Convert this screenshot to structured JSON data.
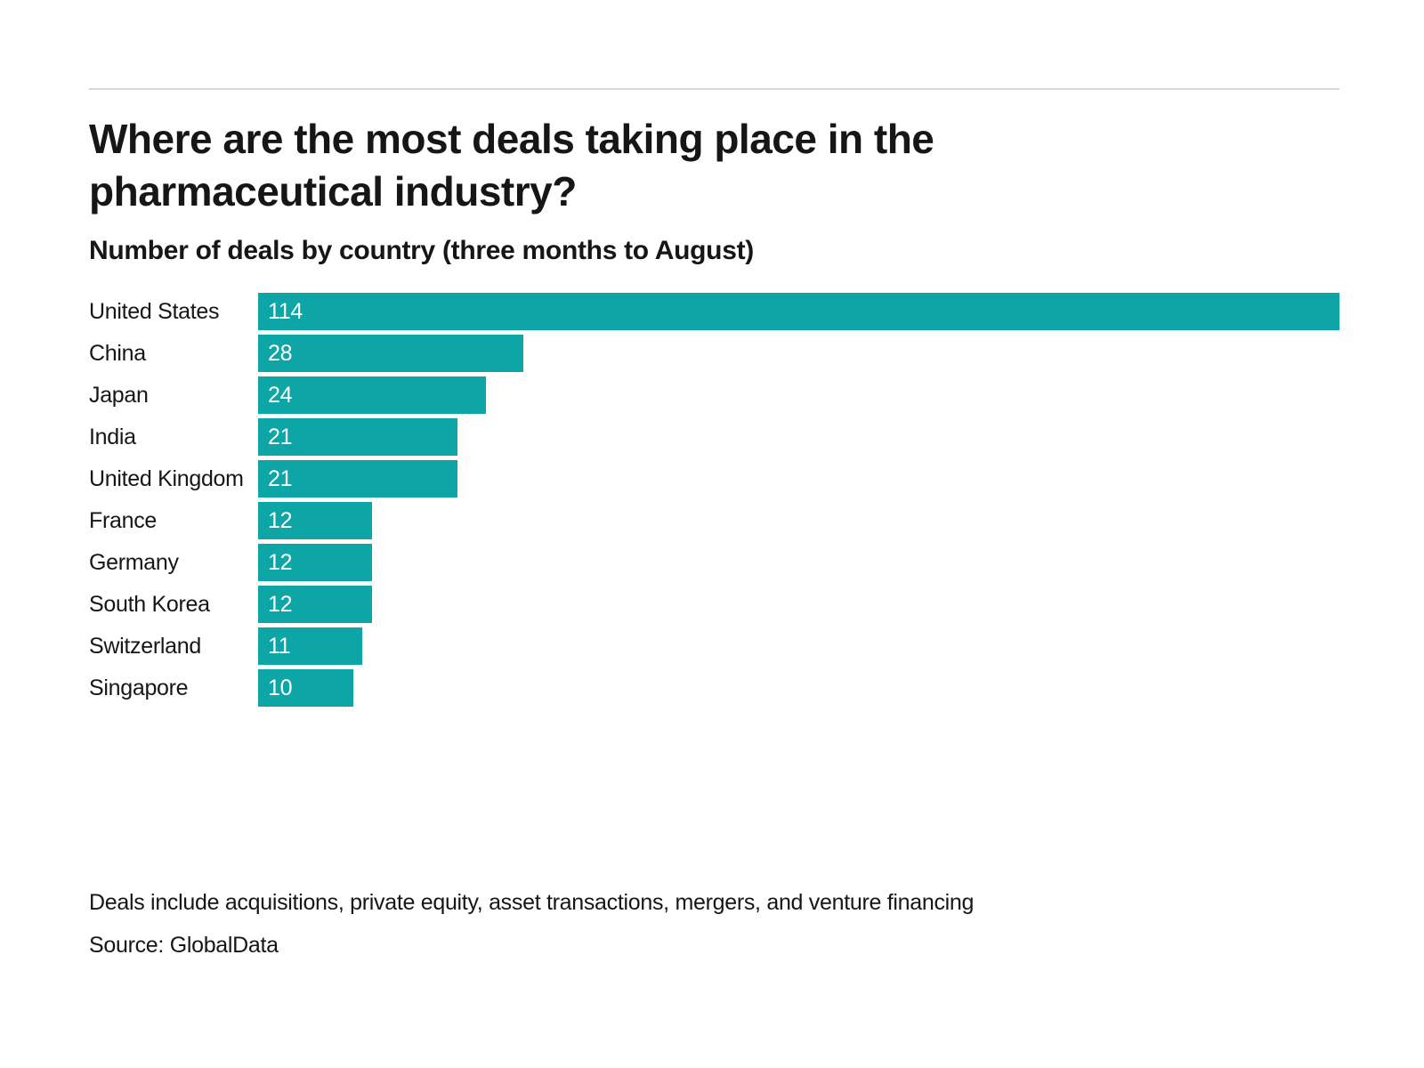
{
  "page": {
    "title": "Where are the most deals taking place in the pharmaceutical industry?",
    "subtitle": "Number of deals by country (three months to August)",
    "footnote": "Deals include acquisitions, private equity, asset transactions, mergers, and venture financing",
    "source": "Source: GlobalData"
  },
  "colors": {
    "bar": "#0da5a5",
    "text": "#161616",
    "value_label": "#ffffff",
    "divider": "#d9d9d9"
  },
  "chart_data": {
    "type": "bar",
    "orientation": "horizontal",
    "title": "Where are the most deals taking place in the pharmaceutical industry?",
    "subtitle": "Number of deals by country (three months to August)",
    "categories": [
      "United States",
      "China",
      "Japan",
      "India",
      "United Kingdom",
      "France",
      "Germany",
      "South Korea",
      "Switzerland",
      "Singapore"
    ],
    "values": [
      114,
      28,
      24,
      21,
      21,
      12,
      12,
      12,
      11,
      10
    ],
    "xlim": [
      0,
      114
    ],
    "grid": false,
    "legend": false,
    "value_labels_position": "inside-left",
    "xlabel": "",
    "ylabel": ""
  }
}
